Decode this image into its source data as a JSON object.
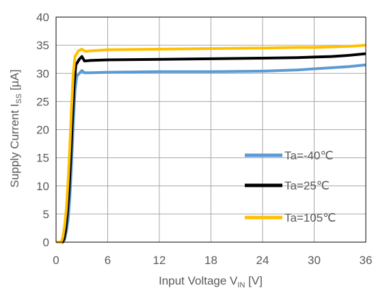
{
  "chart_data": {
    "type": "line",
    "title": "",
    "xlabel": {
      "main": "Input Voltage V",
      "sub": "IN",
      "unit": " [V]"
    },
    "ylabel": {
      "main": "Supply Current I",
      "sub": "SS",
      "unit": " [µA]"
    },
    "xlim": [
      0,
      36
    ],
    "ylim": [
      0,
      40
    ],
    "xticks": [
      0,
      6,
      12,
      18,
      24,
      30,
      36
    ],
    "yticks": [
      0,
      5,
      10,
      15,
      20,
      25,
      30,
      35,
      40
    ],
    "grid": true,
    "legend_position": "bottom-right",
    "series": [
      {
        "name": "Ta=-40℃",
        "color": "#5b9bd5",
        "points": [
          [
            0,
            0
          ],
          [
            0.8,
            0
          ],
          [
            1.0,
            0.5
          ],
          [
            1.2,
            2
          ],
          [
            1.4,
            4
          ],
          [
            1.6,
            8
          ],
          [
            1.8,
            14
          ],
          [
            2.0,
            21
          ],
          [
            2.2,
            27
          ],
          [
            2.4,
            29.5
          ],
          [
            2.7,
            30
          ],
          [
            3.0,
            30.5
          ],
          [
            3.3,
            30.1
          ],
          [
            4,
            30.1
          ],
          [
            6,
            30.2
          ],
          [
            12,
            30.3
          ],
          [
            18,
            30.3
          ],
          [
            24,
            30.4
          ],
          [
            28,
            30.6
          ],
          [
            30,
            30.8
          ],
          [
            32,
            31.0
          ],
          [
            34,
            31.2
          ],
          [
            36,
            31.5
          ]
        ]
      },
      {
        "name": "Ta=25℃",
        "color": "#000000",
        "points": [
          [
            0,
            0
          ],
          [
            0.7,
            0
          ],
          [
            0.9,
            0.5
          ],
          [
            1.1,
            2
          ],
          [
            1.3,
            5
          ],
          [
            1.5,
            9
          ],
          [
            1.7,
            15
          ],
          [
            1.9,
            22
          ],
          [
            2.1,
            28
          ],
          [
            2.3,
            31.5
          ],
          [
            2.7,
            32.5
          ],
          [
            3.0,
            33
          ],
          [
            3.3,
            32.2
          ],
          [
            4,
            32.3
          ],
          [
            6,
            32.4
          ],
          [
            12,
            32.5
          ],
          [
            18,
            32.6
          ],
          [
            24,
            32.7
          ],
          [
            28,
            32.8
          ],
          [
            30,
            32.9
          ],
          [
            32,
            33.0
          ],
          [
            34,
            33.2
          ],
          [
            36,
            33.5
          ]
        ]
      },
      {
        "name": "Ta=105℃",
        "color": "#ffc000",
        "points": [
          [
            0,
            0
          ],
          [
            0.6,
            0
          ],
          [
            0.8,
            1
          ],
          [
            1.0,
            3
          ],
          [
            1.2,
            6
          ],
          [
            1.4,
            11
          ],
          [
            1.6,
            17
          ],
          [
            1.8,
            24
          ],
          [
            2.0,
            30
          ],
          [
            2.2,
            33
          ],
          [
            2.6,
            34
          ],
          [
            3.0,
            34.3
          ],
          [
            3.4,
            33.9
          ],
          [
            4,
            34.0
          ],
          [
            6,
            34.2
          ],
          [
            12,
            34.3
          ],
          [
            18,
            34.4
          ],
          [
            24,
            34.5
          ],
          [
            28,
            34.6
          ],
          [
            30,
            34.6
          ],
          [
            32,
            34.7
          ],
          [
            34,
            34.8
          ],
          [
            36,
            35.0
          ]
        ]
      }
    ]
  }
}
